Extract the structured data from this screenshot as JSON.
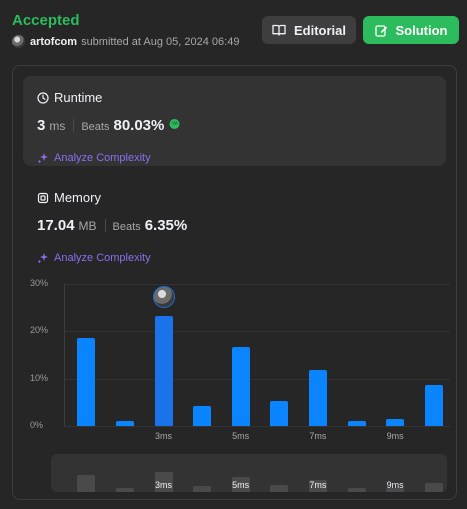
{
  "header": {
    "status": "Accepted",
    "user": "artofcom",
    "submitted_text": "submitted at Aug 05, 2024 06:49",
    "editorial_label": "Editorial",
    "solution_label": "Solution"
  },
  "runtime": {
    "title": "Runtime",
    "value": "3",
    "unit": "ms",
    "beats_label": "Beats",
    "beats_pct": "80.03%",
    "analyze_label": "Analyze Complexity"
  },
  "memory": {
    "title": "Memory",
    "value": "17.04",
    "unit": "MB",
    "beats_label": "Beats",
    "beats_pct": "6.35%",
    "analyze_label": "Analyze Complexity"
  },
  "colors": {
    "accepted": "#2cbb5d",
    "bar": "#0a84ff",
    "analyze": "#8c6eee"
  },
  "chart_data": {
    "type": "bar",
    "title": "",
    "xlabel": "",
    "ylabel": "",
    "y_tick_labels": [
      "30%",
      "20%",
      "10%",
      "0%"
    ],
    "ylim": [
      0,
      30
    ],
    "x_tick_labels": [
      "3ms",
      "5ms",
      "7ms",
      "9ms"
    ],
    "values": [
      18.5,
      1.1,
      23.3,
      4.3,
      16.6,
      5.3,
      11.8,
      1.1,
      1.5,
      8.6
    ],
    "highlight_index": 2,
    "navigator_labels": [
      "3ms",
      "5ms",
      "7ms",
      "9ms"
    ]
  }
}
